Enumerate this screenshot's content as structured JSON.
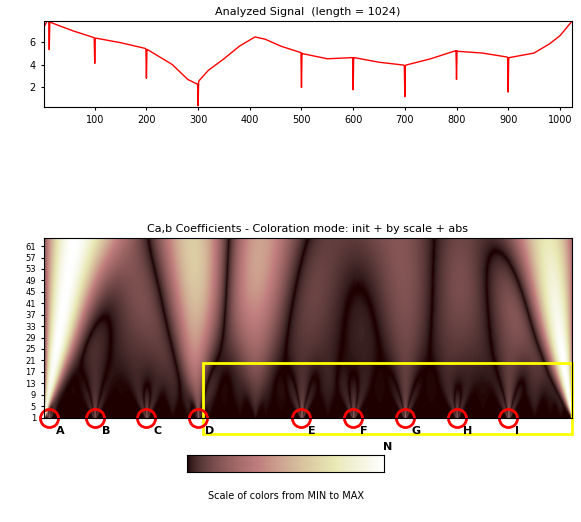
{
  "chart_data": [
    {
      "type": "line",
      "title": "Analyzed Signal  (length = 1024)",
      "x": [
        1,
        8,
        11,
        12,
        13,
        30,
        60,
        98,
        99,
        100,
        101,
        102,
        150,
        198,
        199,
        200,
        201,
        202,
        250,
        280,
        298,
        299,
        300,
        301,
        302,
        320,
        350,
        380,
        410,
        430,
        460,
        498,
        499,
        500,
        501,
        502,
        550,
        598,
        599,
        600,
        601,
        602,
        650,
        698,
        699,
        700,
        701,
        702,
        750,
        798,
        799,
        800,
        801,
        802,
        850,
        898,
        899,
        900,
        901,
        902,
        950,
        980,
        1000,
        1024
      ],
      "values": [
        7.2,
        7.8,
        7.8,
        5.3,
        7.7,
        7.4,
        6.9,
        6.35,
        6.3,
        4.1,
        6.3,
        6.3,
        5.9,
        5.4,
        5.35,
        2.8,
        5.3,
        5.3,
        4.0,
        2.7,
        2.3,
        2.3,
        0.4,
        2.5,
        2.6,
        3.5,
        4.5,
        5.6,
        6.4,
        6.2,
        5.6,
        5.05,
        5.0,
        2.0,
        5.0,
        4.95,
        4.5,
        4.6,
        4.6,
        1.8,
        4.6,
        4.6,
        4.2,
        3.95,
        3.9,
        1.2,
        3.9,
        3.95,
        4.5,
        5.2,
        5.2,
        2.7,
        5.2,
        5.15,
        5.0,
        4.65,
        4.6,
        1.6,
        4.6,
        4.6,
        5.0,
        5.8,
        6.5,
        7.8
      ],
      "color": "#ff0000",
      "xlim": [
        1,
        1024
      ],
      "ylim": [
        0.3,
        7.8
      ],
      "xticks": [
        100,
        200,
        300,
        400,
        500,
        600,
        700,
        800,
        900,
        1000
      ],
      "yticks": [
        2,
        4,
        6
      ]
    },
    {
      "type": "heatmap",
      "title": "Ca,b Coefficients - Coloration mode: init + by scale + abs",
      "xlim": [
        1,
        1024
      ],
      "ylim": [
        1,
        64
      ],
      "yticks": [
        1,
        5,
        9,
        13,
        17,
        21,
        25,
        29,
        33,
        37,
        41,
        45,
        49,
        53,
        57,
        61
      ],
      "tick_labels": "y",
      "color": "#ff0000",
      "annotations": [
        {
          "text": "A",
          "x": 12
        },
        {
          "text": "B",
          "x": 100
        },
        {
          "text": "C",
          "x": 200
        },
        {
          "text": "D",
          "x": 300
        },
        {
          "text": "E",
          "x": 500
        },
        {
          "text": "F",
          "x": 600
        },
        {
          "text": "G",
          "x": 700
        },
        {
          "text": "H",
          "x": 800
        },
        {
          "text": "I",
          "x": 900
        }
      ],
      "highlight": {
        "x": [
          310,
          1024
        ],
        "top": 20,
        "label": "N",
        "color": "#ffff00"
      },
      "colorbar": {
        "label": "Scale of colors from MIN to MAX"
      }
    }
  ]
}
